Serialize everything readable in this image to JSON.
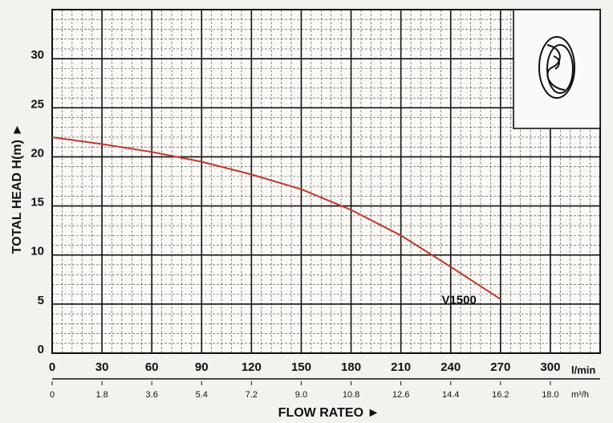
{
  "chart_data": {
    "type": "line",
    "x_label": "FLOW RATEO ►",
    "y_label": "TOTAL HEAD H(m) ►",
    "x_unit": "l/min",
    "x2_unit": "m³/h",
    "x": [
      0,
      30,
      60,
      90,
      120,
      150,
      180,
      210,
      240,
      270
    ],
    "series": [
      {
        "name": "V1500",
        "color": "#c0392b",
        "values": [
          22,
          21.3,
          20.5,
          19.5,
          18.2,
          16.7,
          14.6,
          12,
          8.8,
          5.5
        ]
      }
    ],
    "xlim": [
      0,
      330
    ],
    "xticks": [
      0,
      30,
      60,
      90,
      120,
      150,
      180,
      210,
      240,
      270,
      300
    ],
    "x2lim": [
      0,
      19.8
    ],
    "x2ticks": [
      0,
      1.8,
      3.6,
      5.4,
      7.2,
      {
        "value": 9,
        "label": "9.0"
      },
      10.8,
      12.6,
      14.4,
      16.2,
      {
        "value": 18,
        "label": "18.0"
      }
    ],
    "ylim": [
      0,
      35
    ],
    "yticks": [
      0,
      5,
      10,
      15,
      20,
      25,
      30
    ],
    "grid": true
  }
}
